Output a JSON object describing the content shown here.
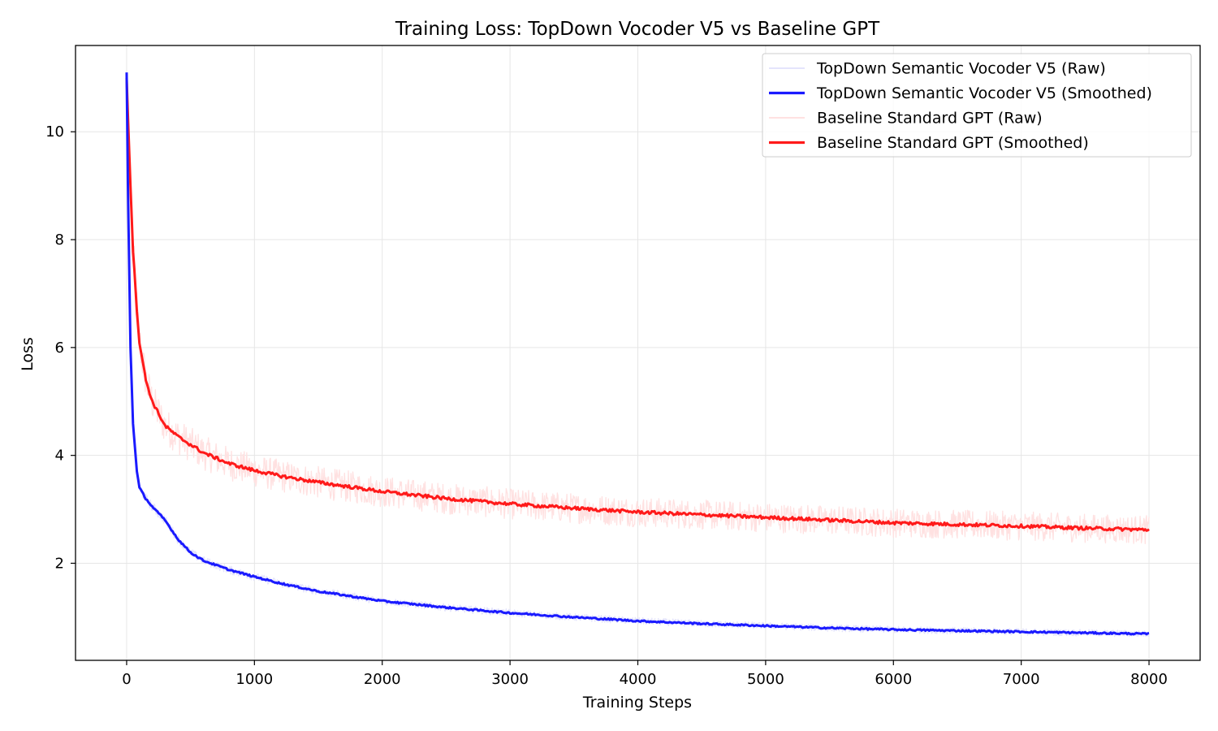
{
  "chart_data": {
    "type": "line",
    "title": "Training Loss: TopDown Vocoder V5 vs Baseline GPT",
    "xlabel": "Training Steps",
    "ylabel": "Loss",
    "xlim": [
      -400,
      8400
    ],
    "ylim": [
      0.2,
      11.6
    ],
    "xticks": [
      0,
      1000,
      2000,
      3000,
      4000,
      5000,
      6000,
      7000,
      8000
    ],
    "xtick_labels": [
      "0",
      "1000",
      "2000",
      "3000",
      "4000",
      "5000",
      "6000",
      "7000",
      "8000"
    ],
    "yticks": [
      2,
      4,
      6,
      8,
      10
    ],
    "ytick_labels": [
      "2",
      "4",
      "6",
      "8",
      "10"
    ],
    "grid": true,
    "legend_position": "top-right",
    "series": [
      {
        "name": "TopDown Semantic Vocoder V5 (Raw)",
        "color": "#e4e4fc",
        "role": "raw",
        "noise": 0.09,
        "x": [
          0,
          10,
          30,
          50,
          80,
          100,
          150,
          200,
          300,
          400,
          500,
          600,
          800,
          1000,
          1200,
          1500,
          2000,
          2500,
          3000,
          3500,
          4000,
          4500,
          5000,
          5500,
          6000,
          6500,
          7000,
          7500,
          8000
        ],
        "y": [
          11.1,
          9.0,
          6.0,
          4.6,
          3.7,
          3.4,
          3.2,
          3.05,
          2.8,
          2.45,
          2.2,
          2.05,
          1.88,
          1.75,
          1.63,
          1.48,
          1.3,
          1.18,
          1.08,
          1.0,
          0.93,
          0.88,
          0.84,
          0.8,
          0.77,
          0.75,
          0.73,
          0.71,
          0.69
        ]
      },
      {
        "name": "TopDown Semantic Vocoder V5 (Smoothed)",
        "color": "#1a1aff",
        "role": "smoothed",
        "noise": 0.015,
        "x": [
          0,
          10,
          30,
          50,
          80,
          100,
          150,
          200,
          300,
          400,
          500,
          600,
          800,
          1000,
          1200,
          1500,
          2000,
          2500,
          3000,
          3500,
          4000,
          4500,
          5000,
          5500,
          6000,
          6500,
          7000,
          7500,
          8000
        ],
        "y": [
          11.1,
          9.0,
          6.0,
          4.6,
          3.7,
          3.4,
          3.2,
          3.05,
          2.8,
          2.45,
          2.2,
          2.05,
          1.88,
          1.75,
          1.63,
          1.48,
          1.3,
          1.18,
          1.08,
          1.0,
          0.93,
          0.88,
          0.84,
          0.8,
          0.77,
          0.75,
          0.73,
          0.71,
          0.69
        ]
      },
      {
        "name": "Baseline Standard GPT (Raw)",
        "color": "#ffe1e1",
        "role": "raw",
        "noise": 0.28,
        "x": [
          0,
          10,
          30,
          50,
          80,
          100,
          150,
          200,
          300,
          400,
          500,
          600,
          800,
          1000,
          1200,
          1500,
          2000,
          2500,
          3000,
          3500,
          4000,
          4500,
          5000,
          5500,
          6000,
          6500,
          7000,
          7500,
          8000
        ],
        "y": [
          11.0,
          10.3,
          9.0,
          7.8,
          6.7,
          6.1,
          5.4,
          5.0,
          4.55,
          4.35,
          4.2,
          4.05,
          3.85,
          3.72,
          3.62,
          3.5,
          3.33,
          3.2,
          3.1,
          3.02,
          2.95,
          2.9,
          2.85,
          2.8,
          2.75,
          2.72,
          2.69,
          2.65,
          2.62
        ]
      },
      {
        "name": "Baseline Standard GPT (Smoothed)",
        "color": "#ff1a1a",
        "role": "smoothed",
        "noise": 0.03,
        "x": [
          0,
          10,
          30,
          50,
          80,
          100,
          150,
          200,
          300,
          400,
          500,
          600,
          800,
          1000,
          1200,
          1500,
          2000,
          2500,
          3000,
          3500,
          4000,
          4500,
          5000,
          5500,
          6000,
          6500,
          7000,
          7500,
          8000
        ],
        "y": [
          11.0,
          10.3,
          9.0,
          7.8,
          6.7,
          6.1,
          5.4,
          5.0,
          4.55,
          4.35,
          4.2,
          4.05,
          3.85,
          3.72,
          3.62,
          3.5,
          3.33,
          3.2,
          3.1,
          3.02,
          2.95,
          2.9,
          2.85,
          2.8,
          2.75,
          2.72,
          2.69,
          2.65,
          2.62
        ]
      }
    ]
  }
}
